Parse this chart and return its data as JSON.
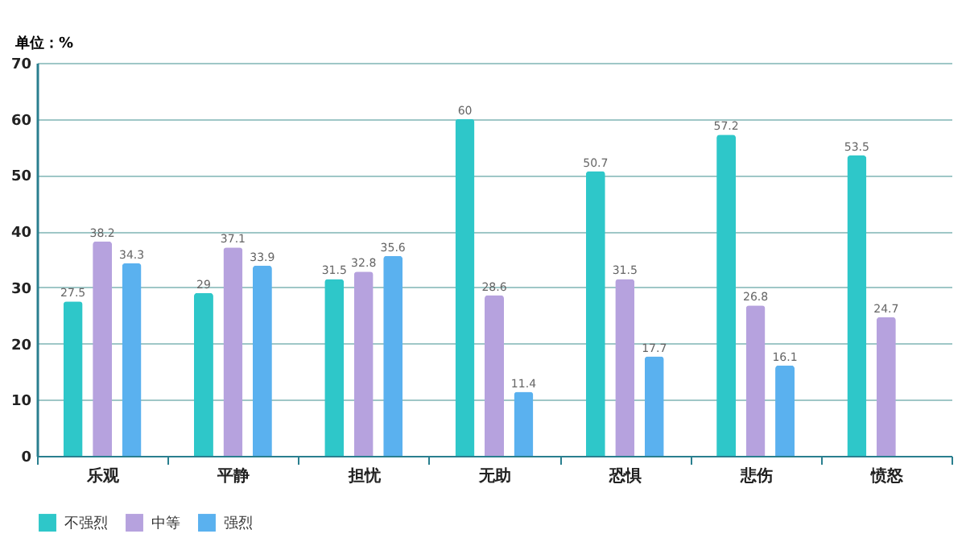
{
  "chart_data": {
    "type": "bar",
    "ylabel": "单位：%",
    "categories": [
      "乐观",
      "平静",
      "担忧",
      "无助",
      "恐惧",
      "悲伤",
      "愤怒"
    ],
    "series": [
      {
        "name": "不强烈",
        "color": "#2ec7c9",
        "values": [
          27.5,
          29,
          31.5,
          60,
          50.7,
          57.2,
          53.5
        ]
      },
      {
        "name": "中等",
        "color": "#b6a2de",
        "values": [
          38.2,
          37.1,
          32.8,
          28.6,
          31.5,
          26.8,
          24.7
        ]
      },
      {
        "name": "强烈",
        "color": "#5ab1ef",
        "values": [
          34.3,
          33.9,
          35.6,
          11.4,
          17.7,
          16.1,
          null
        ]
      }
    ],
    "ylim": [
      0,
      70
    ],
    "yticks": [
      0,
      10,
      20,
      30,
      40,
      50,
      60,
      70
    ],
    "grid": "y",
    "legend": "bottom",
    "data_labels": true
  }
}
